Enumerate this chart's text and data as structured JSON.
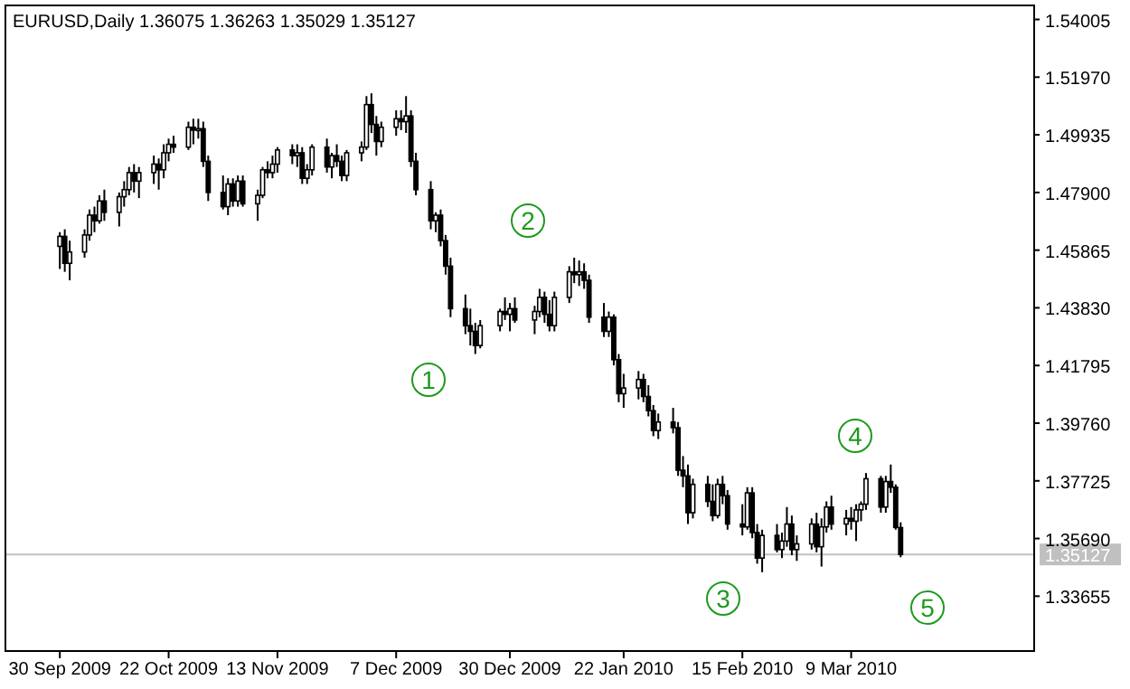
{
  "chart_data": {
    "type": "candlestick",
    "title": "EURUSD,Daily  1.36075 1.36263 1.35029 1.35127",
    "x": [
      "2009-09-30",
      "2009-10-01",
      "2009-10-02",
      "2009-10-05",
      "2009-10-06",
      "2009-10-07",
      "2009-10-08",
      "2009-10-09",
      "2009-10-12",
      "2009-10-13",
      "2009-10-14",
      "2009-10-15",
      "2009-10-16",
      "2009-10-19",
      "2009-10-20",
      "2009-10-21",
      "2009-10-22",
      "2009-10-23",
      "2009-10-26",
      "2009-10-27",
      "2009-10-28",
      "2009-10-29",
      "2009-10-30",
      "2009-11-02",
      "2009-11-03",
      "2009-11-04",
      "2009-11-05",
      "2009-11-06",
      "2009-11-09",
      "2009-11-10",
      "2009-11-11",
      "2009-11-12",
      "2009-11-13",
      "2009-11-16",
      "2009-11-17",
      "2009-11-18",
      "2009-11-19",
      "2009-11-20",
      "2009-11-23",
      "2009-11-24",
      "2009-11-25",
      "2009-11-26",
      "2009-11-27",
      "2009-11-30",
      "2009-12-01",
      "2009-12-02",
      "2009-12-03",
      "2009-12-04",
      "2009-12-07",
      "2009-12-08",
      "2009-12-09",
      "2009-12-10",
      "2009-12-11",
      "2009-12-14",
      "2009-12-15",
      "2009-12-16",
      "2009-12-17",
      "2009-12-18",
      "2009-12-21",
      "2009-12-22",
      "2009-12-23",
      "2009-12-24",
      "2009-12-28",
      "2009-12-29",
      "2009-12-30",
      "2009-12-31",
      "2010-01-04",
      "2010-01-05",
      "2010-01-06",
      "2010-01-07",
      "2010-01-08",
      "2010-01-11",
      "2010-01-12",
      "2010-01-13",
      "2010-01-14",
      "2010-01-15",
      "2010-01-18",
      "2010-01-19",
      "2010-01-20",
      "2010-01-21",
      "2010-01-22",
      "2010-01-25",
      "2010-01-26",
      "2010-01-27",
      "2010-01-28",
      "2010-01-29",
      "2010-02-01",
      "2010-02-02",
      "2010-02-03",
      "2010-02-04",
      "2010-02-05",
      "2010-02-08",
      "2010-02-09",
      "2010-02-10",
      "2010-02-11",
      "2010-02-12",
      "2010-02-15",
      "2010-02-16",
      "2010-02-17",
      "2010-02-18",
      "2010-02-19",
      "2010-02-22",
      "2010-02-23",
      "2010-02-24",
      "2010-02-25",
      "2010-02-26",
      "2010-03-01",
      "2010-03-02",
      "2010-03-03",
      "2010-03-04",
      "2010-03-05",
      "2010-03-08",
      "2010-03-09",
      "2010-03-10",
      "2010-03-11",
      "2010-03-12",
      "2010-03-15",
      "2010-03-16",
      "2010-03-17",
      "2010-03-18",
      "2010-03-19"
    ],
    "ohlc": [
      [
        1.46,
        1.465,
        1.452,
        1.4635
      ],
      [
        1.4635,
        1.466,
        1.451,
        1.454
      ],
      [
        1.454,
        1.462,
        1.448,
        1.458
      ],
      [
        1.458,
        1.466,
        1.456,
        1.464
      ],
      [
        1.464,
        1.473,
        1.462,
        1.471
      ],
      [
        1.471,
        1.474,
        1.465,
        1.469
      ],
      [
        1.469,
        1.478,
        1.468,
        1.476
      ],
      [
        1.476,
        1.48,
        1.469,
        1.472
      ],
      [
        1.472,
        1.479,
        1.467,
        1.4775
      ],
      [
        1.4775,
        1.483,
        1.474,
        1.48
      ],
      [
        1.48,
        1.488,
        1.478,
        1.486
      ],
      [
        1.486,
        1.489,
        1.479,
        1.483
      ],
      [
        1.483,
        1.488,
        1.477,
        1.486
      ],
      [
        1.486,
        1.492,
        1.482,
        1.489
      ],
      [
        1.489,
        1.491,
        1.48,
        1.487
      ],
      [
        1.487,
        1.496,
        1.484,
        1.493
      ],
      [
        1.493,
        1.498,
        1.49,
        1.496
      ],
      [
        1.496,
        1.499,
        1.493,
        1.495
      ],
      [
        1.495,
        1.504,
        1.494,
        1.502
      ],
      [
        1.502,
        1.505,
        1.496,
        1.501
      ],
      [
        1.501,
        1.505,
        1.498,
        1.5015
      ],
      [
        1.5015,
        1.504,
        1.488,
        1.49
      ],
      [
        1.49,
        1.492,
        1.476,
        1.479
      ],
      [
        1.479,
        1.485,
        1.473,
        1.474
      ],
      [
        1.474,
        1.484,
        1.471,
        1.482
      ],
      [
        1.482,
        1.484,
        1.474,
        1.476
      ],
      [
        1.476,
        1.485,
        1.474,
        1.483
      ],
      [
        1.483,
        1.485,
        1.474,
        1.475
      ],
      [
        1.475,
        1.48,
        1.469,
        1.478
      ],
      [
        1.478,
        1.488,
        1.477,
        1.487
      ],
      [
        1.487,
        1.49,
        1.484,
        1.486
      ],
      [
        1.486,
        1.492,
        1.484,
        1.489
      ],
      [
        1.489,
        1.495,
        1.486,
        1.494
      ],
      [
        1.494,
        1.496,
        1.489,
        1.492
      ],
      [
        1.492,
        1.496,
        1.488,
        1.493
      ],
      [
        1.493,
        1.495,
        1.482,
        1.484
      ],
      [
        1.484,
        1.489,
        1.482,
        1.487
      ],
      [
        1.487,
        1.496,
        1.485,
        1.495
      ],
      [
        1.495,
        1.498,
        1.486,
        1.488
      ],
      [
        1.488,
        1.493,
        1.484,
        1.492
      ],
      [
        1.492,
        1.496,
        1.488,
        1.49
      ],
      [
        1.49,
        1.492,
        1.483,
        1.485
      ],
      [
        1.485,
        1.494,
        1.483,
        1.493
      ],
      [
        1.493,
        1.497,
        1.49,
        1.495
      ],
      [
        1.495,
        1.513,
        1.494,
        1.51
      ],
      [
        1.51,
        1.514,
        1.5,
        1.503
      ],
      [
        1.503,
        1.506,
        1.492,
        1.497
      ],
      [
        1.497,
        1.504,
        1.495,
        1.502
      ],
      [
        1.502,
        1.508,
        1.499,
        1.505
      ],
      [
        1.505,
        1.508,
        1.501,
        1.504
      ],
      [
        1.504,
        1.513,
        1.5,
        1.506
      ],
      [
        1.506,
        1.508,
        1.488,
        1.49
      ],
      [
        1.49,
        1.493,
        1.478,
        1.48
      ],
      [
        1.48,
        1.483,
        1.466,
        1.469
      ],
      [
        1.469,
        1.472,
        1.465,
        1.471
      ],
      [
        1.471,
        1.473,
        1.46,
        1.462
      ],
      [
        1.462,
        1.464,
        1.45,
        1.453
      ],
      [
        1.453,
        1.456,
        1.435,
        1.438
      ],
      [
        1.438,
        1.443,
        1.429,
        1.432
      ],
      [
        1.432,
        1.438,
        1.425,
        1.43
      ],
      [
        1.43,
        1.433,
        1.422,
        1.425
      ],
      [
        1.425,
        1.434,
        1.424,
        1.432
      ],
      [
        1.432,
        1.438,
        1.43,
        1.437
      ],
      [
        1.437,
        1.442,
        1.434,
        1.436
      ],
      [
        1.436,
        1.44,
        1.43,
        1.438
      ],
      [
        1.438,
        1.442,
        1.433,
        1.434
      ],
      [
        1.434,
        1.439,
        1.429,
        1.437
      ],
      [
        1.437,
        1.445,
        1.435,
        1.442
      ],
      [
        1.442,
        1.444,
        1.433,
        1.436
      ],
      [
        1.436,
        1.441,
        1.43,
        1.432
      ],
      [
        1.432,
        1.444,
        1.43,
        1.442
      ],
      [
        1.442,
        1.453,
        1.44,
        1.451
      ],
      [
        1.451,
        1.456,
        1.447,
        1.45
      ],
      [
        1.45,
        1.455,
        1.446,
        1.451
      ],
      [
        1.451,
        1.454,
        1.445,
        1.448
      ],
      [
        1.448,
        1.45,
        1.433,
        1.435
      ],
      [
        1.435,
        1.44,
        1.428,
        1.43
      ],
      [
        1.43,
        1.437,
        1.428,
        1.435
      ],
      [
        1.435,
        1.436,
        1.418,
        1.42
      ],
      [
        1.42,
        1.422,
        1.405,
        1.408
      ],
      [
        1.408,
        1.415,
        1.403,
        1.41
      ],
      [
        1.41,
        1.416,
        1.406,
        1.413
      ],
      [
        1.413,
        1.415,
        1.405,
        1.407
      ],
      [
        1.407,
        1.411,
        1.4,
        1.402
      ],
      [
        1.402,
        1.404,
        1.393,
        1.395
      ],
      [
        1.395,
        1.401,
        1.392,
        1.398
      ],
      [
        1.398,
        1.403,
        1.394,
        1.396
      ],
      [
        1.396,
        1.398,
        1.379,
        1.381
      ],
      [
        1.381,
        1.386,
        1.375,
        1.379
      ],
      [
        1.379,
        1.383,
        1.362,
        1.366
      ],
      [
        1.366,
        1.378,
        1.364,
        1.376
      ],
      [
        1.376,
        1.379,
        1.368,
        1.37
      ],
      [
        1.37,
        1.376,
        1.363,
        1.365
      ],
      [
        1.365,
        1.378,
        1.364,
        1.376
      ],
      [
        1.376,
        1.379,
        1.369,
        1.372
      ],
      [
        1.372,
        1.374,
        1.36,
        1.362
      ],
      [
        1.362,
        1.369,
        1.358,
        1.361
      ],
      [
        1.361,
        1.375,
        1.36,
        1.373
      ],
      [
        1.373,
        1.375,
        1.357,
        1.359
      ],
      [
        1.359,
        1.362,
        1.348,
        1.35
      ],
      [
        1.35,
        1.36,
        1.345,
        1.358
      ],
      [
        1.358,
        1.362,
        1.352,
        1.353
      ],
      [
        1.353,
        1.359,
        1.35,
        1.356
      ],
      [
        1.356,
        1.368,
        1.354,
        1.362
      ],
      [
        1.362,
        1.365,
        1.351,
        1.353
      ],
      [
        1.353,
        1.358,
        1.349,
        1.355
      ],
      [
        1.355,
        1.364,
        1.353,
        1.362
      ],
      [
        1.362,
        1.366,
        1.352,
        1.354
      ],
      [
        1.354,
        1.364,
        1.347,
        1.361
      ],
      [
        1.361,
        1.37,
        1.359,
        1.368
      ],
      [
        1.368,
        1.372,
        1.36,
        1.362
      ],
      [
        1.362,
        1.367,
        1.358,
        1.364
      ],
      [
        1.364,
        1.368,
        1.36,
        1.363
      ],
      [
        1.363,
        1.369,
        1.356,
        1.367
      ],
      [
        1.367,
        1.37,
        1.363,
        1.369
      ],
      [
        1.369,
        1.38,
        1.367,
        1.378
      ],
      [
        1.378,
        1.379,
        1.366,
        1.368
      ],
      [
        1.368,
        1.379,
        1.366,
        1.377
      ],
      [
        1.377,
        1.383,
        1.373,
        1.375
      ],
      [
        1.375,
        1.376,
        1.36,
        1.3608
      ],
      [
        1.36075,
        1.36263,
        1.35029,
        1.35127
      ]
    ],
    "color": "#000000",
    "xlim": [
      "2009-09-19",
      "2010-04-15"
    ],
    "xticks": [
      {
        "value": "2009-09-30",
        "label": "30 Sep 2009"
      },
      {
        "value": "2009-10-22",
        "label": "22 Oct 2009"
      },
      {
        "value": "2009-11-13",
        "label": "13 Nov 2009"
      },
      {
        "value": "2009-12-07",
        "label": "7 Dec 2009"
      },
      {
        "value": "2009-12-30",
        "label": "30 Dec 2009"
      },
      {
        "value": "2010-01-22",
        "label": "22 Jan 2010"
      },
      {
        "value": "2010-02-15",
        "label": "15 Feb 2010"
      },
      {
        "value": "2010-03-09",
        "label": "9 Mar 2010"
      }
    ],
    "ylim": [
      1.3172,
      1.545
    ],
    "yticks": [
      1.54005,
      {
        "value": 1.5197,
        "label": "1.51970"
      },
      1.49935,
      {
        "value": 1.479,
        "label": "1.47900"
      },
      1.45865,
      {
        "value": 1.4383,
        "label": "1.43830"
      },
      1.41795,
      {
        "value": 1.3976,
        "label": "1.39760"
      },
      1.37725,
      {
        "value": 1.3569,
        "label": "1.35690"
      },
      1.33655
    ],
    "ref_lines": [
      {
        "axis": "y",
        "value": 1.35127,
        "label": "1.35127",
        "color": "#c0c0c0"
      }
    ],
    "annotations": [
      "1",
      "2",
      "3",
      "4",
      "5"
    ],
    "grid": false
  }
}
